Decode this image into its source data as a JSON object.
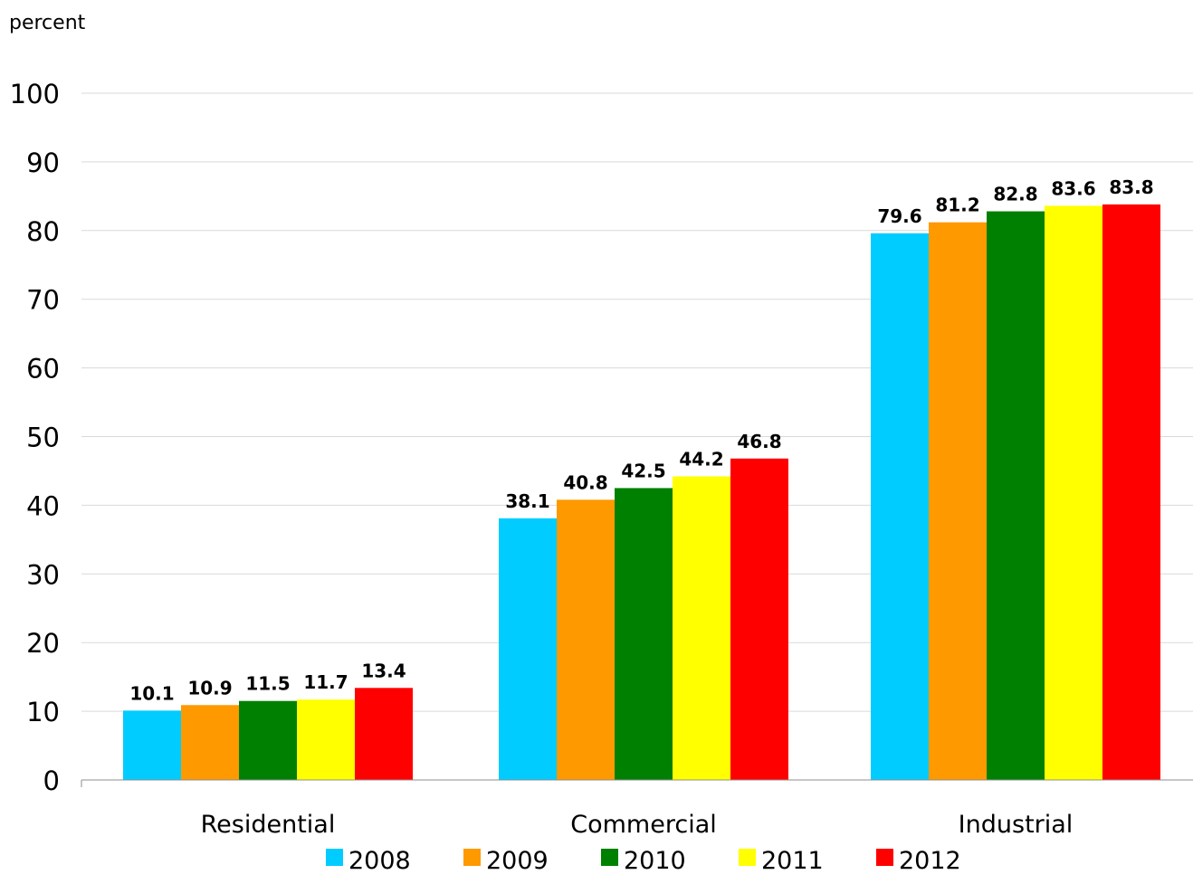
{
  "chart_data": {
    "type": "bar",
    "ylabel": "percent",
    "xlabel": "",
    "title": "",
    "ylim": [
      0,
      100
    ],
    "yticks": [
      0,
      10,
      20,
      30,
      40,
      50,
      60,
      70,
      80,
      90,
      100
    ],
    "grid": true,
    "legend_position": "bottom",
    "categories": [
      "Residential",
      "Commercial",
      "Industrial"
    ],
    "series": [
      {
        "name": "2008",
        "color": "#00CCFF",
        "values": [
          10.1,
          38.1,
          79.6
        ]
      },
      {
        "name": "2009",
        "color": "#FF9900",
        "values": [
          10.9,
          40.8,
          81.2
        ]
      },
      {
        "name": "2010",
        "color": "#008000",
        "values": [
          11.5,
          42.5,
          82.8
        ]
      },
      {
        "name": "2011",
        "color": "#FFFF00",
        "values": [
          11.7,
          44.2,
          83.6
        ]
      },
      {
        "name": "2012",
        "color": "#FF0000",
        "values": [
          13.4,
          46.8,
          83.8
        ]
      }
    ],
    "data_labels": [
      [
        "10.1",
        "38.1",
        "79.6"
      ],
      [
        "10.9",
        "40.8",
        "81.2"
      ],
      [
        "11.5",
        "42.5",
        "82.8"
      ],
      [
        "11.7",
        "44.2",
        "83.6"
      ],
      [
        "13.4",
        "46.8",
        "83.8"
      ]
    ]
  }
}
